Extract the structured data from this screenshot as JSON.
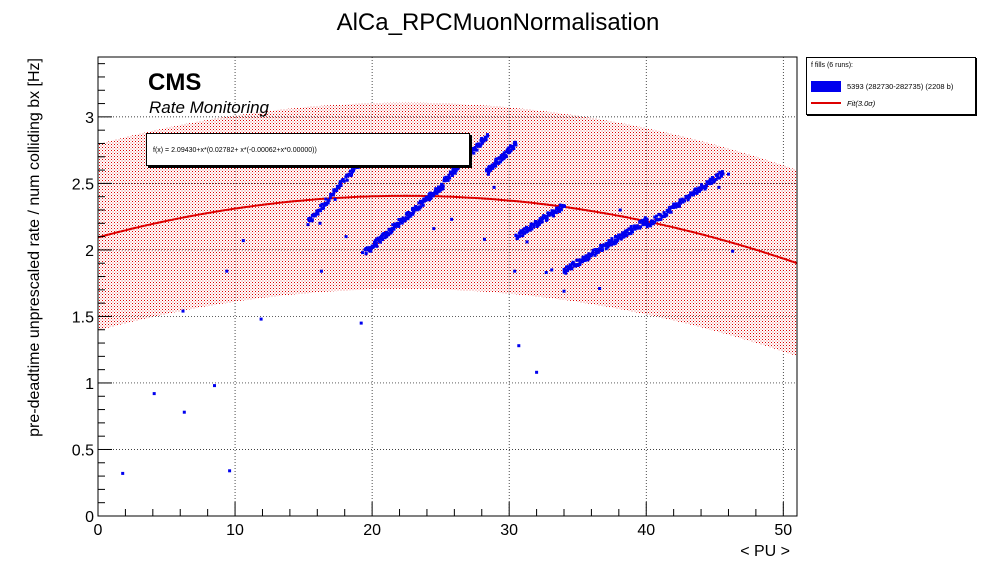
{
  "chart_data": {
    "type": "scatter",
    "title": "AlCa_RPCMuonNormalisation",
    "xlabel": "< PU >",
    "ylabel": "pre-deadtime unprescaled rate / num colliding bx [Hz]",
    "xlim": [
      0,
      51
    ],
    "ylim": [
      0,
      3.45
    ],
    "x_ticks": [
      "0",
      "10",
      "20",
      "30",
      "40",
      "50"
    ],
    "y_ticks": [
      "0",
      "0.5",
      "1",
      "1.5",
      "2",
      "2.5",
      "3"
    ],
    "grid": true,
    "legend_position": "outside-top-right",
    "cms_label": "CMS",
    "cms_sublabel": "Rate Monitoring",
    "fit_label": "f(x) = 2.09430+x*(0.02782+ x*(-0.00062+x*0.00000))",
    "fit": {
      "coefficients": [
        2.0943,
        0.02782,
        -0.00062,
        0.0
      ],
      "band_halfwidth": 0.7,
      "band_x_range": [
        0,
        51
      ],
      "curve_x_range": [
        0,
        51
      ],
      "line_color": "#dd0000",
      "band_color": "#dd0000"
    },
    "legend": {
      "header": "f fills (6 runs):",
      "series_label": "5393 (282730-282735) (2208 b)",
      "fit_label": "Fit(3.0σ)"
    },
    "series": [
      {
        "name": "5393 (282730-282735) (2208 b)",
        "color": "#0000ee",
        "clusters": [
          {
            "x0": 15.3,
            "x1": 19.3,
            "y0": 2.2,
            "y1": 2.68,
            "n": 85
          },
          {
            "x0": 19.5,
            "x1": 25.3,
            "y0": 1.98,
            "y1": 2.5,
            "n": 170
          },
          {
            "x0": 25.3,
            "x1": 28.4,
            "y0": 2.52,
            "y1": 2.86,
            "n": 90
          },
          {
            "x0": 28.3,
            "x1": 30.5,
            "y0": 2.58,
            "y1": 2.8,
            "n": 70
          },
          {
            "x0": 30.5,
            "x1": 34.0,
            "y0": 2.1,
            "y1": 2.33,
            "n": 90
          },
          {
            "x0": 34.0,
            "x1": 40.0,
            "y0": 1.84,
            "y1": 2.22,
            "n": 150
          },
          {
            "x0": 40.0,
            "x1": 45.6,
            "y0": 2.18,
            "y1": 2.58,
            "n": 120
          }
        ],
        "outliers": [
          {
            "x": 1.8,
            "y": 0.32
          },
          {
            "x": 4.1,
            "y": 0.92
          },
          {
            "x": 6.3,
            "y": 0.78
          },
          {
            "x": 6.2,
            "y": 1.54
          },
          {
            "x": 8.5,
            "y": 0.98
          },
          {
            "x": 9.4,
            "y": 1.84
          },
          {
            "x": 9.6,
            "y": 0.34
          },
          {
            "x": 10.6,
            "y": 2.07
          },
          {
            "x": 11.9,
            "y": 1.48
          },
          {
            "x": 16.3,
            "y": 1.84
          },
          {
            "x": 16.2,
            "y": 2.2
          },
          {
            "x": 17.3,
            "y": 2.38
          },
          {
            "x": 18.1,
            "y": 2.1
          },
          {
            "x": 19.2,
            "y": 1.45
          },
          {
            "x": 19.3,
            "y": 1.98
          },
          {
            "x": 24.5,
            "y": 2.16
          },
          {
            "x": 25.8,
            "y": 2.23
          },
          {
            "x": 28.2,
            "y": 2.08
          },
          {
            "x": 28.9,
            "y": 2.47
          },
          {
            "x": 30.4,
            "y": 1.84
          },
          {
            "x": 30.7,
            "y": 1.28
          },
          {
            "x": 31.3,
            "y": 2.06
          },
          {
            "x": 32.0,
            "y": 1.08
          },
          {
            "x": 32.7,
            "y": 1.83
          },
          {
            "x": 33.1,
            "y": 1.85
          },
          {
            "x": 34.0,
            "y": 1.69
          },
          {
            "x": 36.6,
            "y": 1.71
          },
          {
            "x": 38.1,
            "y": 2.3
          },
          {
            "x": 45.3,
            "y": 2.47
          },
          {
            "x": 46.0,
            "y": 2.57
          },
          {
            "x": 46.3,
            "y": 1.99
          }
        ]
      }
    ]
  }
}
